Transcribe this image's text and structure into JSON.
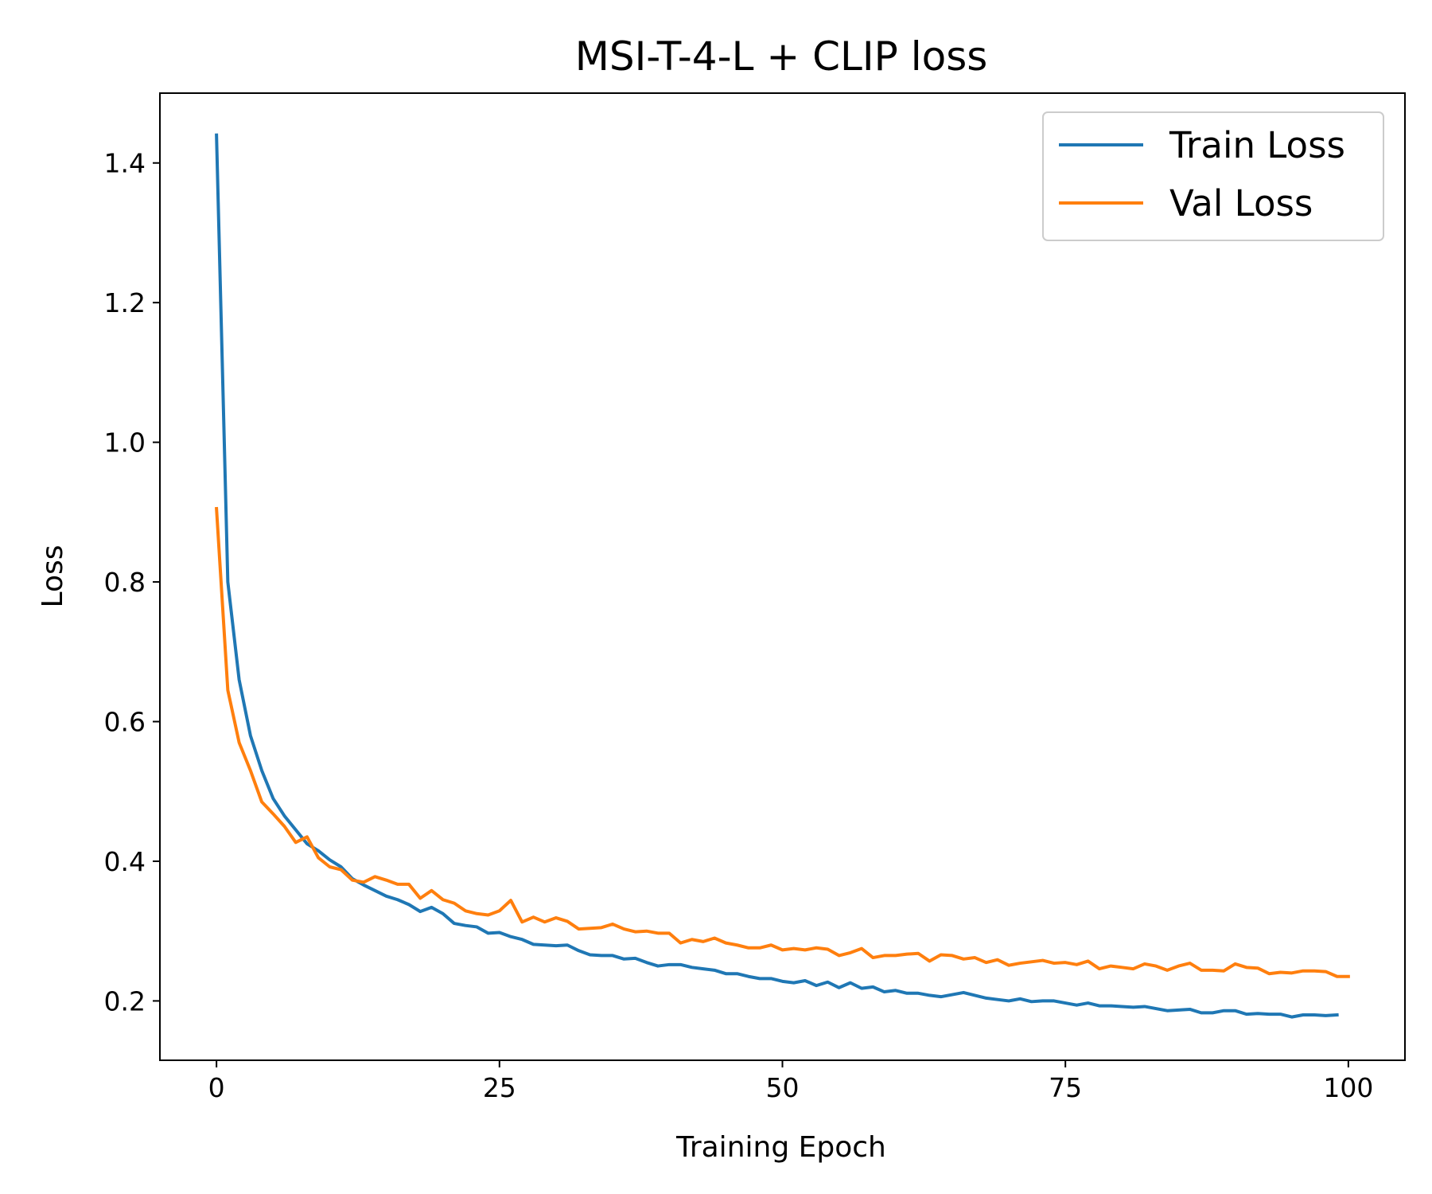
{
  "chart_data": {
    "type": "line",
    "title": "MSI-T-4-L + CLIP loss",
    "xlabel": "Training Epoch",
    "ylabel": "Loss",
    "xlim": [
      -5,
      105
    ],
    "ylim": [
      0.115,
      1.5
    ],
    "xticks": [
      0,
      25,
      50,
      75,
      100
    ],
    "yticks": [
      0.2,
      0.4,
      0.6,
      0.8,
      1.0,
      1.2,
      1.4
    ],
    "xtick_labels": [
      "0",
      "25",
      "50",
      "75",
      "100"
    ],
    "ytick_labels": [
      "0.2",
      "0.4",
      "0.6",
      "0.8",
      "1.0",
      "1.2",
      "1.4"
    ],
    "grid": false,
    "legend": "top-right",
    "series": [
      {
        "name": "Train Loss",
        "color": "#1f77b4",
        "x_start": 0,
        "values": [
          1.44,
          0.8,
          0.66,
          0.58,
          0.53,
          0.49,
          0.465,
          0.445,
          0.425,
          0.415,
          0.402,
          0.392,
          0.375,
          0.366,
          0.358,
          0.35,
          0.345,
          0.338,
          0.328,
          0.334,
          0.325,
          0.311,
          0.308,
          0.306,
          0.297,
          0.298,
          0.292,
          0.288,
          0.281,
          0.28,
          0.279,
          0.28,
          0.272,
          0.266,
          0.265,
          0.265,
          0.26,
          0.261,
          0.255,
          0.25,
          0.252,
          0.252,
          0.248,
          0.246,
          0.244,
          0.239,
          0.239,
          0.235,
          0.232,
          0.232,
          0.228,
          0.226,
          0.229,
          0.222,
          0.227,
          0.219,
          0.226,
          0.218,
          0.22,
          0.213,
          0.215,
          0.211,
          0.211,
          0.208,
          0.206,
          0.209,
          0.212,
          0.208,
          0.204,
          0.202,
          0.2,
          0.203,
          0.199,
          0.2,
          0.2,
          0.197,
          0.194,
          0.197,
          0.193,
          0.193,
          0.192,
          0.191,
          0.192,
          0.189,
          0.186,
          0.187,
          0.188,
          0.183,
          0.183,
          0.186,
          0.186,
          0.181,
          0.182,
          0.181,
          0.181,
          0.177,
          0.18,
          0.18,
          0.179,
          0.18
        ]
      },
      {
        "name": "Val Loss",
        "color": "#ff7f0e",
        "x_start": 0,
        "values": [
          0.905,
          0.645,
          0.57,
          0.53,
          0.485,
          0.468,
          0.45,
          0.427,
          0.435,
          0.405,
          0.392,
          0.388,
          0.373,
          0.37,
          0.378,
          0.373,
          0.367,
          0.367,
          0.347,
          0.358,
          0.345,
          0.34,
          0.329,
          0.325,
          0.323,
          0.329,
          0.344,
          0.313,
          0.32,
          0.313,
          0.319,
          0.314,
          0.303,
          0.304,
          0.305,
          0.31,
          0.303,
          0.299,
          0.3,
          0.297,
          0.297,
          0.283,
          0.288,
          0.285,
          0.29,
          0.283,
          0.28,
          0.276,
          0.276,
          0.28,
          0.273,
          0.275,
          0.273,
          0.276,
          0.274,
          0.265,
          0.269,
          0.275,
          0.262,
          0.265,
          0.265,
          0.267,
          0.268,
          0.257,
          0.266,
          0.265,
          0.26,
          0.262,
          0.255,
          0.259,
          0.251,
          0.254,
          0.256,
          0.258,
          0.254,
          0.255,
          0.252,
          0.257,
          0.246,
          0.25,
          0.248,
          0.246,
          0.253,
          0.25,
          0.244,
          0.25,
          0.254,
          0.244,
          0.244,
          0.243,
          0.253,
          0.248,
          0.247,
          0.239,
          0.241,
          0.24,
          0.243,
          0.243,
          0.242,
          0.235,
          0.235
        ]
      }
    ]
  }
}
